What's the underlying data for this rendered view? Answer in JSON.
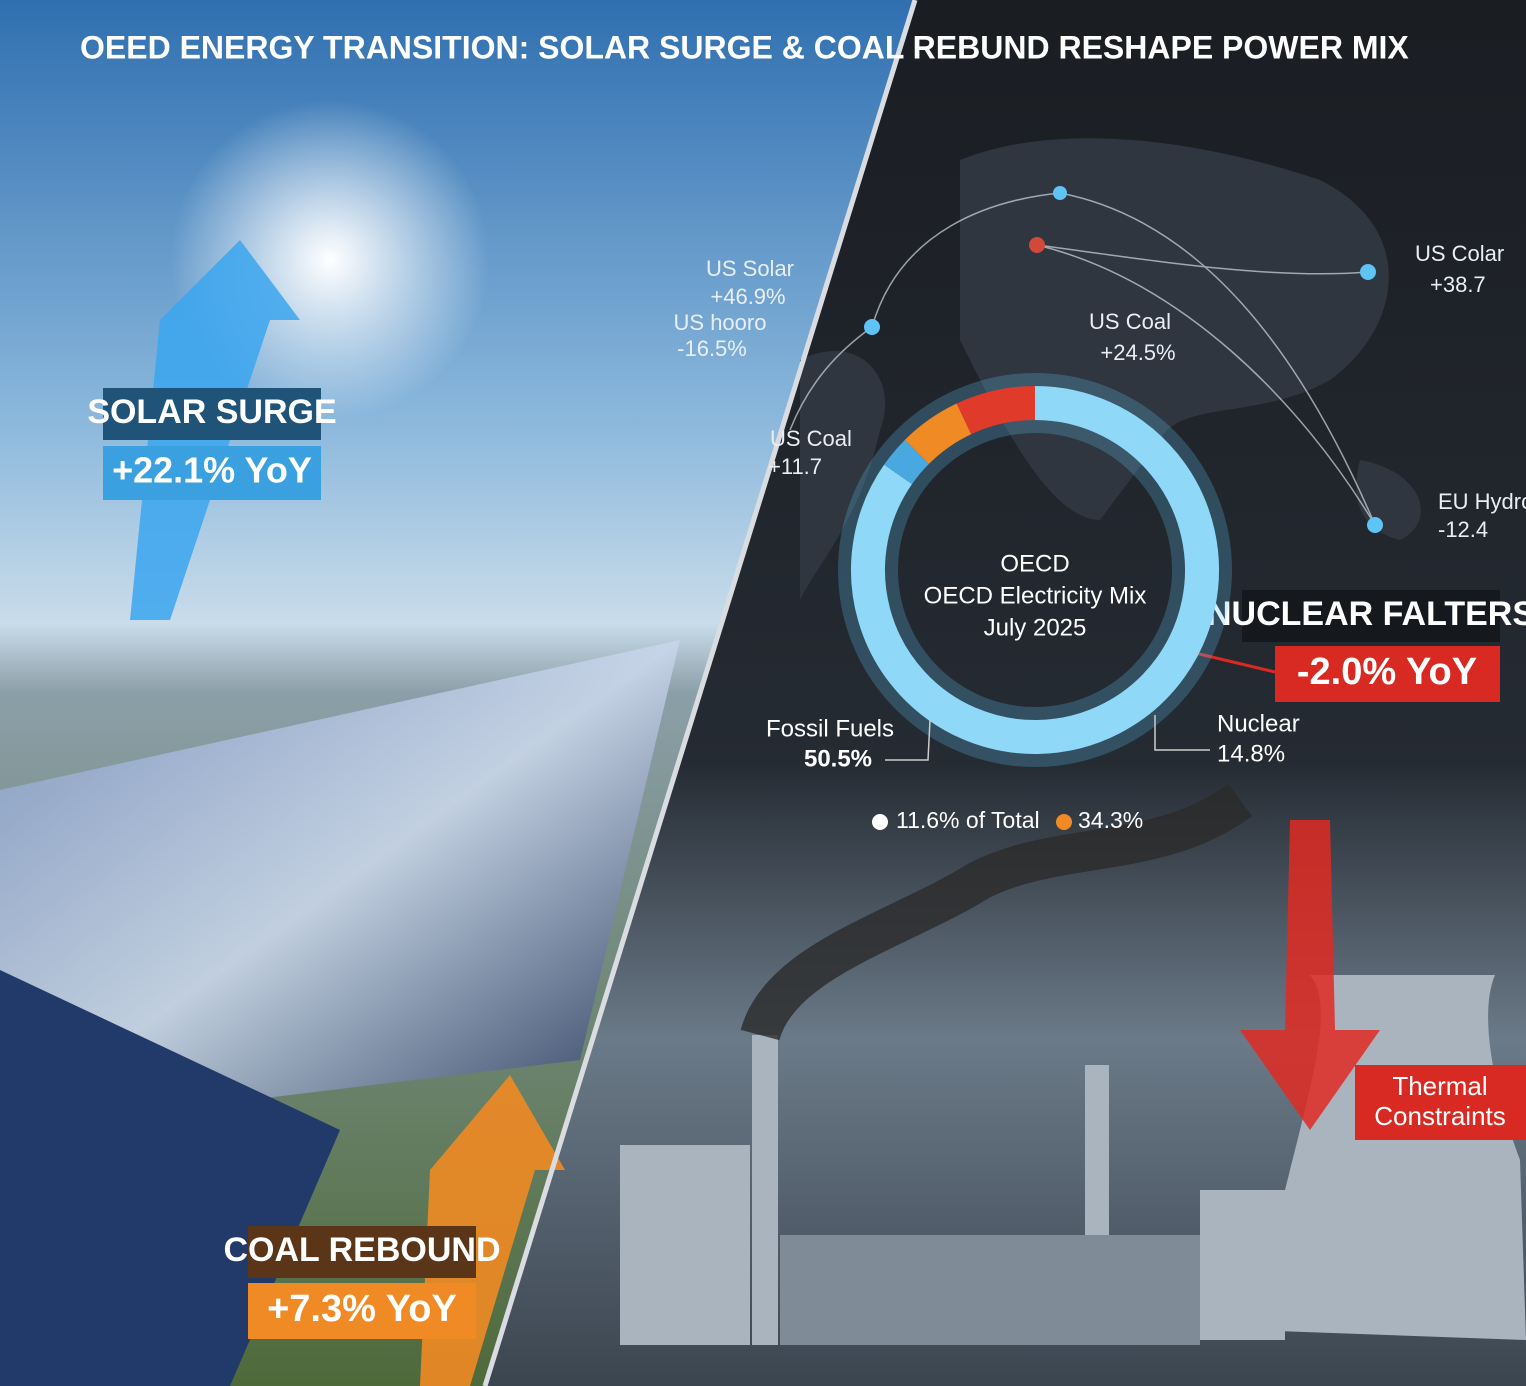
{
  "header": {
    "title": "OEED ENERGY TRANSITION: SOLAR SURGE & COAL REBUND RESHAPE POWER MIX"
  },
  "callouts": {
    "solar": {
      "label": "SOLAR SURGE",
      "change": "+22.1% YoY"
    },
    "coal": {
      "label": "COAL REBOUND",
      "change": "+7.3% YoY"
    },
    "nuclear": {
      "label": "NUCLEAR FALTERS",
      "change": "-2.0% YoY"
    },
    "thermal": {
      "lines": [
        "Thermal",
        "Constraints"
      ]
    }
  },
  "map_labels": [
    {
      "name": "US Solar",
      "value": "+46.9%"
    },
    {
      "name": "US hooro",
      "value": "-16.5%"
    },
    {
      "name": "US Coal",
      "value": "+24.5%"
    },
    {
      "name": "US Colar",
      "value": "+38.7"
    },
    {
      "name": "US Coal",
      "value": "+11.7"
    },
    {
      "name": "EU Hydro",
      "value": "-12.4"
    }
  ],
  "donut": {
    "center": [
      "OECD",
      "OECD Electricity Mix",
      "July 2025"
    ],
    "segments": [
      {
        "color": "#8fd8f7",
        "value": 84.7
      },
      {
        "color": "#4aa8e0",
        "value": 2.8
      },
      {
        "color": "#f08a24",
        "value": 5.5
      },
      {
        "color": "#e03a2a",
        "value": 7.0
      }
    ],
    "labels": [
      {
        "name": "Fossil Fuels",
        "value": "50.5%"
      },
      {
        "name": "Nuclear",
        "value": "14.8%"
      }
    ],
    "legend": [
      {
        "color": "#ffffff",
        "text": "11.6% of Total"
      },
      {
        "color": "#f08a24",
        "text": "34.3%"
      }
    ]
  }
}
